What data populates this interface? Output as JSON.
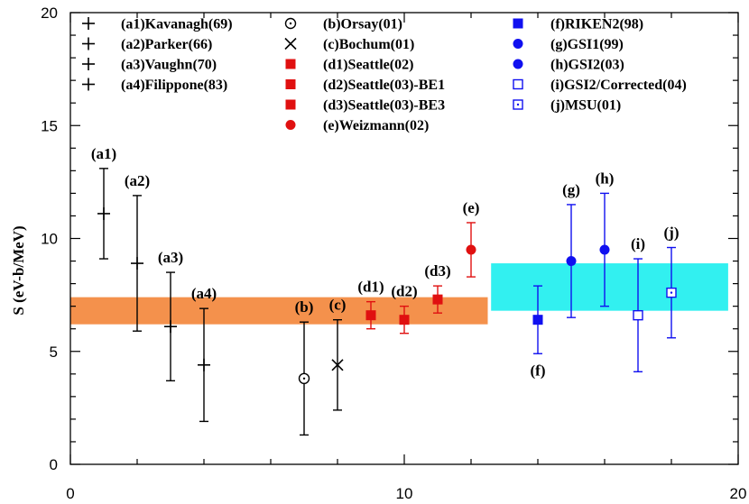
{
  "chart_data": {
    "type": "scatter",
    "title": "",
    "xlabel": "",
    "ylabel": "S (eV-b/MeV)",
    "xlim": [
      0,
      20
    ],
    "ylim": [
      0,
      20
    ],
    "x_ticks": [
      0,
      10,
      20
    ],
    "y_ticks": [
      0,
      5,
      10,
      15,
      20
    ],
    "x_tick_labels": [
      "0",
      "10",
      "20"
    ],
    "y_tick_labels": [
      "0",
      "5",
      "10",
      "15",
      "20"
    ],
    "bands": [
      {
        "name": "low-energy-band",
        "x": [
          0,
          12.5
        ],
        "y": [
          6.2,
          7.4
        ],
        "color": "#f4914c"
      },
      {
        "name": "high-energy-band",
        "x": [
          12.6,
          19.7
        ],
        "y": [
          6.8,
          8.9
        ],
        "color": "#32f0f0"
      }
    ],
    "points": [
      {
        "id": "a1",
        "label": "(a1)",
        "x": 1,
        "y": 11.1,
        "err_lo": 9.1,
        "err_hi": 13.1,
        "marker": "plus",
        "color": "#000000",
        "label_pos": "above"
      },
      {
        "id": "a2",
        "label": "(a2)",
        "x": 2,
        "y": 8.9,
        "err_lo": 5.9,
        "err_hi": 11.9,
        "marker": "plus",
        "color": "#000000",
        "label_pos": "above"
      },
      {
        "id": "a3",
        "label": "(a3)",
        "x": 3,
        "y": 6.1,
        "err_lo": 3.7,
        "err_hi": 8.5,
        "marker": "plus",
        "color": "#000000",
        "label_pos": "above"
      },
      {
        "id": "a4",
        "label": "(a4)",
        "x": 4,
        "y": 4.4,
        "err_lo": 1.9,
        "err_hi": 6.9,
        "marker": "plus",
        "color": "#000000",
        "label_pos": "above"
      },
      {
        "id": "b",
        "label": "(b)",
        "x": 7,
        "y": 3.8,
        "err_lo": 1.3,
        "err_hi": 6.3,
        "marker": "dotted-circle",
        "color": "#000000",
        "label_pos": "above"
      },
      {
        "id": "c",
        "label": "(c)",
        "x": 8,
        "y": 4.4,
        "err_lo": 2.4,
        "err_hi": 6.4,
        "marker": "cross",
        "color": "#000000",
        "label_pos": "above"
      },
      {
        "id": "d1",
        "label": "(d1)",
        "x": 9,
        "y": 6.6,
        "err_lo": 6.0,
        "err_hi": 7.2,
        "marker": "filled-square",
        "color": "#e01010",
        "label_pos": "above"
      },
      {
        "id": "d2",
        "label": "(d2)",
        "x": 10,
        "y": 6.4,
        "err_lo": 5.8,
        "err_hi": 7.0,
        "marker": "filled-square",
        "color": "#e01010",
        "label_pos": "above"
      },
      {
        "id": "d3",
        "label": "(d3)",
        "x": 11,
        "y": 7.3,
        "err_lo": 6.7,
        "err_hi": 7.9,
        "marker": "filled-square",
        "color": "#e01010",
        "label_pos": "above"
      },
      {
        "id": "e",
        "label": "(e)",
        "x": 12,
        "y": 9.5,
        "err_lo": 8.3,
        "err_hi": 10.7,
        "marker": "filled-circle",
        "color": "#e01010",
        "label_pos": "above"
      },
      {
        "id": "f",
        "label": "(f)",
        "x": 14,
        "y": 6.4,
        "err_lo": 4.9,
        "err_hi": 7.9,
        "marker": "filled-square",
        "color": "#1010f0",
        "label_pos": "below"
      },
      {
        "id": "g",
        "label": "(g)",
        "x": 15,
        "y": 9.0,
        "err_lo": 6.5,
        "err_hi": 11.5,
        "marker": "filled-circle",
        "color": "#1010f0",
        "label_pos": "above"
      },
      {
        "id": "h",
        "label": "(h)",
        "x": 16,
        "y": 9.5,
        "err_lo": 7.0,
        "err_hi": 12.0,
        "marker": "filled-circle",
        "color": "#1010f0",
        "label_pos": "above"
      },
      {
        "id": "i",
        "label": "(i)",
        "x": 17,
        "y": 6.6,
        "err_lo": 4.1,
        "err_hi": 9.1,
        "marker": "open-square",
        "color": "#1010f0",
        "label_pos": "above"
      },
      {
        "id": "j",
        "label": "(j)",
        "x": 18,
        "y": 7.6,
        "err_lo": 5.6,
        "err_hi": 9.6,
        "marker": "dotted-square",
        "color": "#1010f0",
        "label_pos": "above"
      }
    ],
    "legend": {
      "columns": [
        [
          {
            "marker": "plus",
            "color": "#000000",
            "text": "(a1)Kavanagh(69)"
          },
          {
            "marker": "plus",
            "color": "#000000",
            "text": "(a2)Parker(66)"
          },
          {
            "marker": "plus",
            "color": "#000000",
            "text": "(a3)Vaughn(70)"
          },
          {
            "marker": "plus",
            "color": "#000000",
            "text": "(a4)Filippone(83)"
          }
        ],
        [
          {
            "marker": "dotted-circle",
            "color": "#000000",
            "text": "(b)Orsay(01)"
          },
          {
            "marker": "cross",
            "color": "#000000",
            "text": "(c)Bochum(01)"
          },
          {
            "marker": "filled-square",
            "color": "#e01010",
            "text": "(d1)Seattle(02)"
          },
          {
            "marker": "filled-square",
            "color": "#e01010",
            "text": "(d2)Seattle(03)-BE1"
          },
          {
            "marker": "filled-square",
            "color": "#e01010",
            "text": "(d3)Seattle(03)-BE3"
          },
          {
            "marker": "filled-circle",
            "color": "#e01010",
            "text": "(e)Weizmann(02)"
          }
        ],
        [
          {
            "marker": "filled-square",
            "color": "#1010f0",
            "text": "(f)RIKEN2(98)"
          },
          {
            "marker": "filled-circle",
            "color": "#1010f0",
            "text": "(g)GSI1(99)"
          },
          {
            "marker": "filled-circle",
            "color": "#1010f0",
            "text": "(h)GSI2(03)"
          },
          {
            "marker": "open-square",
            "color": "#1010f0",
            "text": "(i)GSI2/Corrected(04)"
          },
          {
            "marker": "dotted-square",
            "color": "#1010f0",
            "text": "(j)MSU(01)"
          }
        ]
      ]
    }
  }
}
